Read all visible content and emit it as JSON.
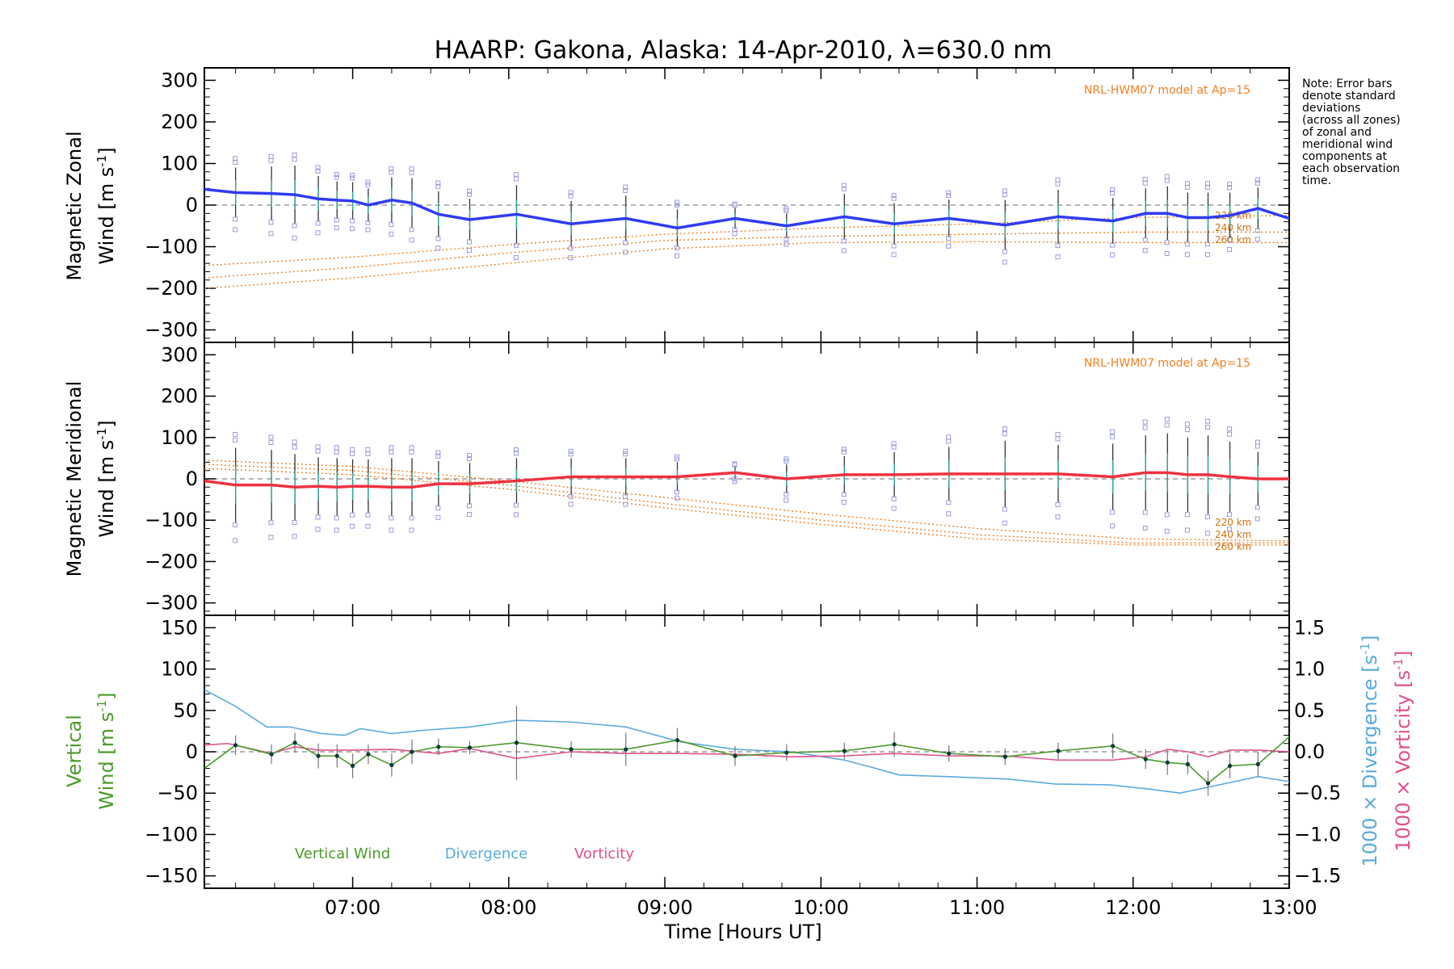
{
  "title": "HAARP: Gakona,  Alaska: 14-Apr-2010, λ=630.0 nm",
  "note": [
    "Note: Error bars",
    "denote standard",
    "deviations",
    "(across all zones)",
    "of zonal and",
    "meridional wind",
    "components at",
    "each observation",
    "time."
  ],
  "xlabel": "Time [Hours UT]",
  "xticks": [
    "07:00",
    "08:00",
    "09:00",
    "10:00",
    "11:00",
    "12:00",
    "13:00"
  ],
  "model_label": "NRL-HWM07 model at Ap=15",
  "alt_labels": [
    "220 km",
    "240 km",
    "260 km"
  ],
  "panels": {
    "zonal": {
      "ylabel_line1": "Magnetic Zonal",
      "ylabel_line2": "Wind [m s",
      "ylabel_sup": "-1",
      "ylabel_close": "]",
      "yticks": [
        "300",
        "200",
        "100",
        "0",
        "−100",
        "−200",
        "−300"
      ]
    },
    "meridional": {
      "ylabel_line1": "Magnetic Meridional",
      "ylabel_line2": "Wind [m s",
      "ylabel_sup": "-1",
      "ylabel_close": "]",
      "yticks": [
        "300",
        "200",
        "100",
        "0",
        "−100",
        "−200",
        "−300"
      ]
    },
    "vertical": {
      "ylabel_line1": "Vertical",
      "ylabel_line2": "Wind [m s",
      "ylabel_sup": "-1",
      "ylabel_close": "]",
      "yticks": [
        "150",
        "100",
        "50",
        "0",
        "−50",
        "−100",
        "−150"
      ],
      "right_ticks": [
        "1.5",
        "1.0",
        "0.5",
        "0.0",
        "−0.5",
        "−1.0",
        "−1.5"
      ],
      "right_label_div": "1000 × Divergence [s",
      "right_label_vor": "1000 × Vorticity [s",
      "right_sup": "-1",
      "right_close": "]"
    }
  },
  "legend": {
    "vertical": "Vertical Wind",
    "divergence": "Divergence",
    "vorticity": "Vorticity"
  },
  "colors": {
    "zonal": "#2f3cf0",
    "meridional": "#ee3240",
    "vertical": "#4c9a2a",
    "divergence": "#5aaadc",
    "vorticity": "#e0508c",
    "model": "#f08020",
    "scatter": "#9a9ae0"
  },
  "chart_data": {
    "type": "line",
    "x_unit": "hours UT",
    "xlim": [
      6.05,
      13.0
    ],
    "zonal": {
      "ylim": [
        -330,
        330
      ],
      "x": [
        6.05,
        6.25,
        6.48,
        6.63,
        6.78,
        6.9,
        7.0,
        7.1,
        7.25,
        7.38,
        7.55,
        7.75,
        8.05,
        8.4,
        8.75,
        9.08,
        9.45,
        9.78,
        10.15,
        10.47,
        10.82,
        11.18,
        11.52,
        11.87,
        12.08,
        12.22,
        12.35,
        12.48,
        12.62,
        12.8,
        13.0
      ],
      "wind": [
        38,
        30,
        28,
        25,
        15,
        12,
        10,
        0,
        12,
        5,
        -22,
        -35,
        -22,
        -45,
        -32,
        -55,
        -32,
        -50,
        -28,
        -45,
        -32,
        -48,
        -28,
        -38,
        -20,
        -20,
        -30,
        -30,
        -25,
        -8,
        -32
      ],
      "err": [
        0,
        60,
        65,
        70,
        55,
        45,
        45,
        40,
        55,
        60,
        55,
        50,
        70,
        55,
        55,
        45,
        25,
        30,
        55,
        50,
        45,
        60,
        65,
        55,
        60,
        65,
        60,
        60,
        55,
        50,
        0
      ],
      "model": [
        {
          "name": "220 km",
          "x": [
            6.05,
            7.0,
            8.0,
            9.0,
            10.0,
            11.0,
            12.0,
            13.0
          ],
          "y": [
            -145,
            -125,
            -95,
            -70,
            -55,
            -45,
            -30,
            -25
          ]
        },
        {
          "name": "240 km",
          "x": [
            6.05,
            7.0,
            8.0,
            9.0,
            10.0,
            11.0,
            12.0,
            13.0
          ],
          "y": [
            -175,
            -150,
            -115,
            -85,
            -75,
            -70,
            -65,
            -65
          ]
        },
        {
          "name": "260 km",
          "x": [
            6.05,
            7.0,
            8.0,
            9.0,
            10.0,
            11.0,
            12.0,
            13.0
          ],
          "y": [
            -200,
            -175,
            -140,
            -105,
            -90,
            -88,
            -90,
            -90
          ]
        }
      ]
    },
    "meridional": {
      "ylim": [
        -330,
        330
      ],
      "x": [
        6.05,
        6.25,
        6.48,
        6.63,
        6.78,
        6.9,
        7.0,
        7.1,
        7.25,
        7.38,
        7.55,
        7.75,
        8.05,
        8.4,
        8.75,
        9.08,
        9.45,
        9.78,
        10.15,
        10.47,
        10.82,
        11.18,
        11.52,
        11.87,
        12.08,
        12.22,
        12.35,
        12.48,
        12.62,
        12.8,
        13.0
      ],
      "wind": [
        -5,
        -15,
        -15,
        -20,
        -18,
        -20,
        -18,
        -18,
        -20,
        -20,
        -12,
        -12,
        -5,
        5,
        5,
        5,
        15,
        0,
        10,
        10,
        12,
        12,
        12,
        5,
        15,
        15,
        10,
        10,
        5,
        0,
        0
      ],
      "err": [
        0,
        90,
        85,
        80,
        70,
        70,
        65,
        65,
        70,
        70,
        55,
        50,
        55,
        45,
        45,
        35,
        15,
        35,
        45,
        55,
        65,
        80,
        70,
        80,
        90,
        95,
        90,
        95,
        85,
        65,
        0
      ],
      "model": [
        {
          "name": "220 km",
          "x": [
            6.05,
            7.0,
            8.0,
            9.0,
            10.0,
            11.0,
            12.0,
            13.0
          ],
          "y": [
            45,
            30,
            -5,
            -45,
            -85,
            -120,
            -145,
            -150
          ]
        },
        {
          "name": "240 km",
          "x": [
            6.05,
            7.0,
            8.0,
            9.0,
            10.0,
            11.0,
            12.0,
            13.0
          ],
          "y": [
            35,
            20,
            -15,
            -60,
            -100,
            -135,
            -155,
            -155
          ]
        },
        {
          "name": "260 km",
          "x": [
            6.05,
            7.0,
            8.0,
            9.0,
            10.0,
            11.0,
            12.0,
            13.0
          ],
          "y": [
            25,
            10,
            -25,
            -70,
            -110,
            -145,
            -160,
            -160
          ]
        }
      ]
    },
    "vertical": {
      "ylim": [
        -165,
        165
      ],
      "right_ylim": [
        -1.65,
        1.65
      ],
      "x": [
        6.05,
        6.25,
        6.48,
        6.63,
        6.78,
        6.9,
        7.0,
        7.1,
        7.25,
        7.38,
        7.55,
        7.75,
        8.05,
        8.4,
        8.75,
        9.08,
        9.45,
        9.78,
        10.15,
        10.47,
        10.82,
        11.18,
        11.52,
        11.87,
        12.08,
        12.22,
        12.35,
        12.48,
        12.62,
        12.8,
        13.0
      ],
      "wind": [
        -20,
        8,
        -3,
        11,
        -5,
        -5,
        -17,
        -3,
        -16,
        0,
        6,
        5,
        11,
        3,
        3,
        14,
        -5,
        -1,
        1,
        9,
        -2,
        -6,
        1,
        7,
        -9,
        -13,
        -15,
        -38,
        -17,
        -15,
        18
      ],
      "err": [
        0,
        12,
        12,
        12,
        15,
        14,
        15,
        12,
        14,
        15,
        10,
        8,
        45,
        10,
        20,
        15,
        12,
        10,
        10,
        15,
        10,
        10,
        10,
        15,
        12,
        15,
        12,
        15,
        15,
        15,
        0
      ],
      "divergence": {
        "x": [
          6.05,
          6.25,
          6.45,
          6.6,
          6.8,
          6.95,
          7.05,
          7.25,
          7.45,
          7.75,
          8.05,
          8.4,
          8.75,
          9.1,
          9.45,
          9.8,
          10.15,
          10.35,
          10.5,
          10.8,
          11.2,
          11.5,
          11.85,
          12.1,
          12.3,
          12.5,
          12.8,
          13.0
        ],
        "y": [
          0.75,
          0.55,
          0.3,
          0.3,
          0.22,
          0.2,
          0.28,
          0.22,
          0.26,
          0.3,
          0.38,
          0.36,
          0.3,
          0.12,
          0.03,
          0.0,
          -0.1,
          -0.2,
          -0.28,
          -0.3,
          -0.33,
          -0.39,
          -0.4,
          -0.45,
          -0.5,
          -0.42,
          -0.3,
          -0.36
        ]
      },
      "vorticity": {
        "x": [
          6.05,
          6.2,
          6.48,
          6.63,
          6.78,
          7.0,
          7.25,
          7.55,
          7.75,
          8.05,
          8.4,
          8.75,
          9.1,
          9.45,
          9.8,
          10.15,
          10.47,
          10.82,
          11.18,
          11.52,
          11.87,
          12.08,
          12.22,
          12.35,
          12.48,
          12.62,
          12.8,
          13.0
        ],
        "y": [
          0.08,
          0.1,
          -0.02,
          0.06,
          0.02,
          0.02,
          0.03,
          -0.02,
          0.04,
          -0.08,
          0.0,
          -0.02,
          -0.02,
          -0.03,
          -0.06,
          -0.05,
          -0.02,
          -0.05,
          -0.05,
          -0.1,
          -0.1,
          -0.06,
          0.03,
          0.0,
          -0.06,
          0.02,
          0.02,
          0.0
        ]
      }
    }
  }
}
